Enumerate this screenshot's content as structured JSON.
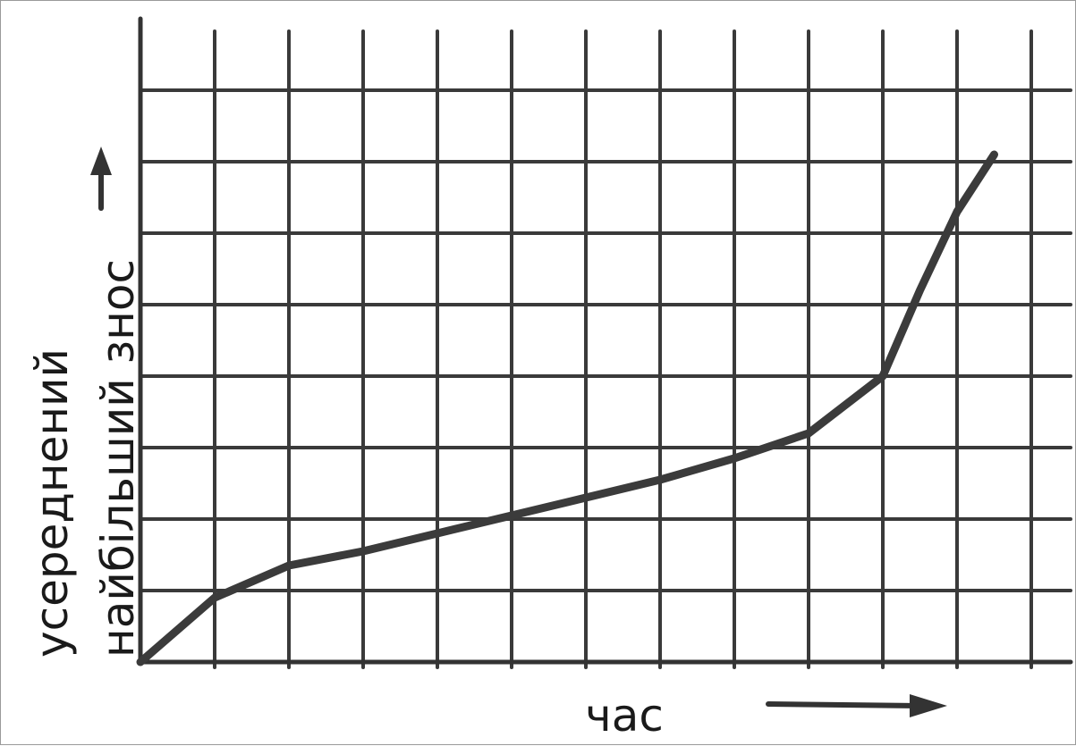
{
  "chart_data": {
    "type": "line",
    "title": "",
    "xlabel": "час",
    "ylabel_lines": [
      "усереднений",
      "найбільший знос"
    ],
    "xlim": [
      0,
      12
    ],
    "ylim": [
      0,
      8.5
    ],
    "grid": true,
    "x_arrow": true,
    "y_arrow": true,
    "series": [
      {
        "points": [
          [
            0,
            0
          ],
          [
            1,
            0.9
          ],
          [
            2,
            1.35
          ],
          [
            3,
            1.55
          ],
          [
            4,
            1.8
          ],
          [
            5,
            2.05
          ],
          [
            6,
            2.3
          ],
          [
            7,
            2.55
          ],
          [
            8,
            2.85
          ],
          [
            9,
            3.2
          ],
          [
            10,
            4.0
          ],
          [
            10.5,
            5.2
          ],
          [
            11,
            6.3
          ],
          [
            11.5,
            7.1
          ]
        ]
      }
    ],
    "colors": {
      "line": "#3b3b3b",
      "grid": "#3a3a3a",
      "text": "#1a1a1a"
    }
  }
}
